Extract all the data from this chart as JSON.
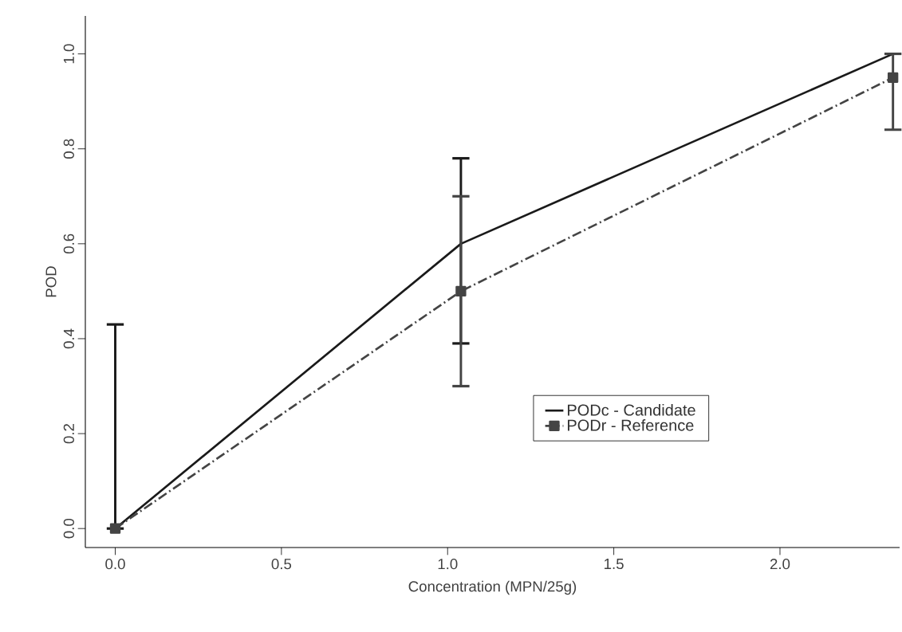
{
  "chart_data": {
    "type": "line",
    "xlabel": "Concentration (MPN/25g)",
    "ylabel": "POD",
    "x": [
      0,
      1.04,
      2.34
    ],
    "series": [
      {
        "name": "PODc - Candidate",
        "color": "#1a1a1a",
        "values": [
          0,
          0.6,
          1.0
        ],
        "errors": [
          [
            0,
            0.43
          ],
          [
            0.39,
            0.78
          ],
          null
        ],
        "line_style": "solid",
        "marker": "none"
      },
      {
        "name": "PODr - Reference",
        "color": "#444444",
        "values": [
          0,
          0.5,
          0.95
        ],
        "errors": [
          null,
          [
            0.3,
            0.7
          ],
          [
            0.84,
            1.0
          ]
        ],
        "line_style": "dashdot",
        "marker": "square"
      }
    ],
    "xlim": [
      -0.09,
      2.36
    ],
    "ylim": [
      -0.04,
      1.08
    ],
    "xticks": [
      {
        "value": 0,
        "label": "0.0"
      },
      {
        "value": 0.5,
        "label": "0.5"
      },
      {
        "value": 1,
        "label": "1.0"
      },
      {
        "value": 1.5,
        "label": "1.5"
      },
      {
        "value": 2,
        "label": "2.0"
      }
    ],
    "yticks": [
      {
        "value": 0,
        "label": "0.0"
      },
      {
        "value": 0.2,
        "label": "0.2"
      },
      {
        "value": 0.4,
        "label": "0.4"
      },
      {
        "value": 0.6,
        "label": "0.6"
      },
      {
        "value": 0.8,
        "label": "0.8"
      },
      {
        "value": 1,
        "label": "1.0"
      }
    ],
    "grid": false,
    "legend": "right"
  }
}
